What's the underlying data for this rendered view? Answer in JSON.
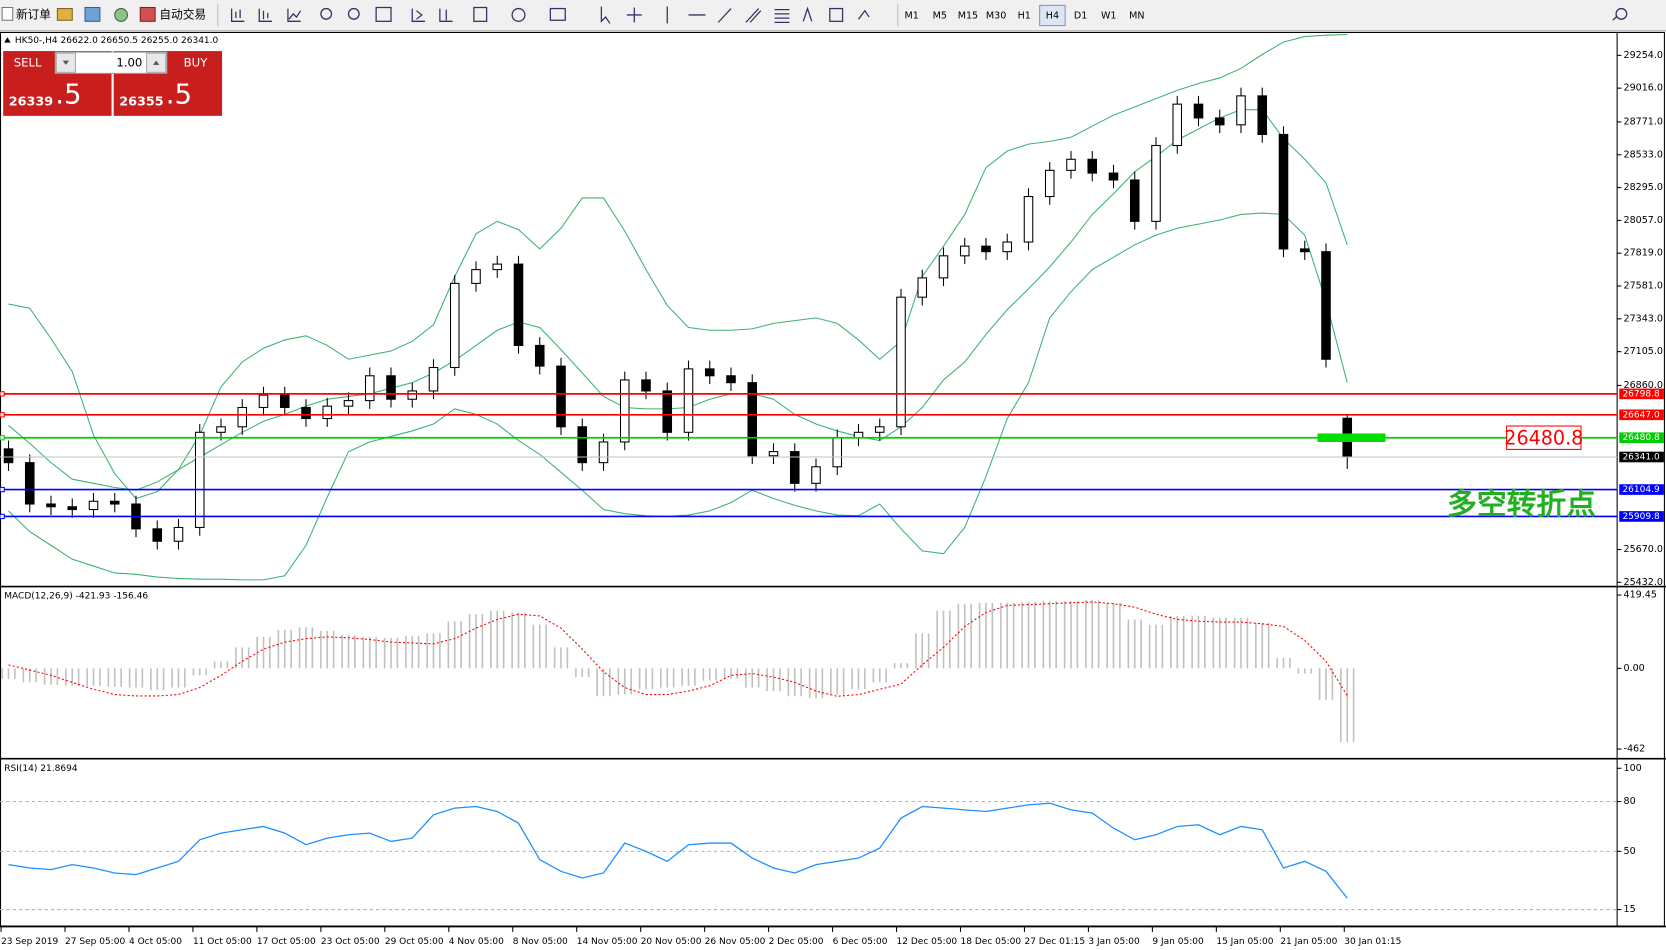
{
  "toolbar": {
    "new_order": "新订单",
    "auto_trading": "自动交易",
    "timeframes": [
      "M1",
      "M5",
      "M15",
      "M30",
      "H1",
      "H4",
      "D1",
      "W1",
      "MN"
    ],
    "active_timeframe": "H4"
  },
  "trade_panel": {
    "sell": "SELL",
    "buy": "BUY",
    "lots": "1.00",
    "bid_big": "26339",
    "bid_small": ".5",
    "ask_big": "26355",
    "ask_small": ".5"
  },
  "chart_data": [
    {
      "type": "candlestick",
      "title": "HK50-,H4  26622.0 26650.5 26255.0 26341.0",
      "open": [
        26400,
        26300,
        26000,
        25980,
        25960,
        26020,
        26000,
        25820,
        25730,
        25830,
        26520,
        26560,
        26700,
        26790,
        26700,
        26620,
        26710,
        26750,
        26930,
        26760,
        26820,
        26990,
        27600,
        27700,
        27740,
        27150,
        27000,
        26560,
        26300,
        26450,
        26900,
        26820,
        26520,
        26980,
        26930,
        26880,
        26350,
        26380,
        26150,
        26270,
        26480,
        26520,
        26560,
        27500,
        27640,
        27800,
        27870,
        27830,
        27900,
        28230,
        28420,
        28500,
        28400,
        28350,
        28050,
        28600,
        28900,
        28800,
        28750,
        28960,
        28680,
        27850,
        27830,
        26622
      ],
      "high": [
        26460,
        26360,
        26060,
        26040,
        26080,
        26080,
        26060,
        25880,
        25890,
        26580,
        26620,
        26760,
        26850,
        26850,
        26760,
        26770,
        26810,
        26990,
        26990,
        26880,
        27050,
        27660,
        27760,
        27800,
        27800,
        27210,
        27060,
        26620,
        26510,
        26960,
        26960,
        26880,
        27040,
        27040,
        26990,
        26940,
        26440,
        26440,
        26330,
        26540,
        26580,
        26620,
        27560,
        27700,
        27860,
        27930,
        27930,
        27960,
        28290,
        28480,
        28560,
        28560,
        28460,
        28410,
        28660,
        28960,
        28960,
        28860,
        29020,
        29020,
        28740,
        27910,
        27890,
        26650.5
      ],
      "low": [
        26240,
        25940,
        25920,
        25900,
        25900,
        25940,
        25760,
        25670,
        25670,
        25770,
        26460,
        26500,
        26640,
        26640,
        26560,
        26560,
        26650,
        26690,
        26700,
        26700,
        26760,
        26930,
        27540,
        27640,
        27090,
        26940,
        26500,
        26240,
        26240,
        26390,
        26760,
        26460,
        26460,
        26870,
        26820,
        26290,
        26290,
        26090,
        26090,
        26210,
        26420,
        26460,
        26500,
        27440,
        27580,
        27740,
        27770,
        27770,
        27840,
        28170,
        28360,
        28340,
        28290,
        27990,
        27990,
        28540,
        28740,
        28690,
        28690,
        28620,
        27790,
        27770,
        26990,
        26255
      ],
      "close": [
        26300,
        26000,
        25980,
        25960,
        26020,
        26000,
        25820,
        25730,
        25830,
        26520,
        26560,
        26700,
        26790,
        26700,
        26620,
        26710,
        26750,
        26930,
        26760,
        26820,
        26990,
        27600,
        27700,
        27740,
        27150,
        27000,
        26560,
        26300,
        26450,
        26900,
        26820,
        26520,
        26980,
        26930,
        26880,
        26350,
        26380,
        26150,
        26270,
        26480,
        26520,
        26560,
        27500,
        27640,
        27800,
        27870,
        27830,
        27900,
        28230,
        28420,
        28500,
        28400,
        28350,
        28050,
        28600,
        28900,
        28800,
        28750,
        28960,
        28680,
        27850,
        27830,
        27050,
        26341
      ],
      "bands": {
        "color": "#3cb371",
        "upper": [
          27450,
          27420,
          27200,
          26960,
          26500,
          26220,
          26040,
          26090,
          26250,
          26500,
          26850,
          27030,
          27130,
          27190,
          27220,
          27150,
          27050,
          27080,
          27110,
          27180,
          27300,
          27650,
          27960,
          28050,
          27990,
          27850,
          28000,
          28220,
          28220,
          27980,
          27700,
          27440,
          27280,
          27260,
          27260,
          27270,
          27310,
          27330,
          27350,
          27310,
          27190,
          27050,
          27180,
          27650,
          27870,
          28100,
          28440,
          28560,
          28610,
          28630,
          28660,
          28740,
          28820,
          28880,
          28940,
          29000,
          29050,
          29090,
          29160,
          29260,
          29350,
          29390,
          29400,
          29405
        ],
        "middle": [
          26570,
          26440,
          26300,
          26180,
          26150,
          26120,
          26100,
          26160,
          26250,
          26340,
          26430,
          26520,
          26600,
          26650,
          26710,
          26760,
          26780,
          26800,
          26840,
          26880,
          26950,
          27040,
          27150,
          27260,
          27320,
          27280,
          27120,
          26950,
          26780,
          26700,
          26690,
          26690,
          26700,
          26760,
          26800,
          26800,
          26760,
          26650,
          26580,
          26530,
          26490,
          26460,
          26560,
          26700,
          26900,
          27030,
          27230,
          27410,
          27560,
          27720,
          27900,
          28100,
          28250,
          28410,
          28520,
          28640,
          28720,
          28800,
          28860,
          28860,
          28650,
          28500,
          28330,
          27880
        ],
        "lower": [
          25950,
          25800,
          25700,
          25600,
          25550,
          25500,
          25490,
          25470,
          25460,
          25455,
          25455,
          25450,
          25450,
          25480,
          25700,
          26050,
          26380,
          26450,
          26490,
          26530,
          26580,
          26690,
          26650,
          26580,
          26460,
          26360,
          26230,
          26100,
          25960,
          25930,
          25915,
          25910,
          25920,
          25950,
          26010,
          26100,
          26040,
          25990,
          25950,
          25920,
          25915,
          26000,
          25820,
          25660,
          25640,
          25830,
          26200,
          26620,
          26880,
          27350,
          27540,
          27700,
          27790,
          27880,
          27950,
          28000,
          28030,
          28060,
          28100,
          28110,
          28100,
          27950,
          27470,
          26880
        ]
      },
      "hlines": [
        {
          "value": 26798.8,
          "label": "26798.8",
          "color": "#ff0000"
        },
        {
          "value": 26647.0,
          "label": "26647.0",
          "color": "#ff0000"
        },
        {
          "value": 26480.8,
          "label": "26480.8",
          "color": "#00cc00"
        },
        {
          "value": 26104.9,
          "label": "26104.9",
          "color": "#0000ff"
        },
        {
          "value": 25909.8,
          "label": "25909.8",
          "color": "#0000ff"
        }
      ],
      "last": {
        "value": 26341.0,
        "label": "26341.0"
      },
      "annotation": "多空转折点",
      "x_labels": [
        "23 Sep 2019",
        "27 Sep 05:00",
        "4 Oct 05:00",
        "11 Oct 05:00",
        "17 Oct 05:00",
        "23 Oct 05:00",
        "29 Oct 05:00",
        "4 Nov 05:00",
        "8 Nov 05:00",
        "14 Nov 05:00",
        "20 Nov 05:00",
        "26 Nov 05:00",
        "2 Dec 05:00",
        "6 Dec 05:00",
        "12 Dec 05:00",
        "18 Dec 05:00",
        "27 Dec 01:15",
        "3 Jan 05:00",
        "9 Jan 05:00",
        "15 Jan 05:00",
        "21 Jan 05:00",
        "30 Jan 01:15"
      ],
      "ylim": [
        25409,
        29416
      ],
      "yticks": [
        {
          "value": 29254,
          "label": "29254.0"
        },
        {
          "value": 29016,
          "label": "29016.0"
        },
        {
          "value": 28771,
          "label": "28771.0"
        },
        {
          "value": 28533,
          "label": "28533.0"
        },
        {
          "value": 28295,
          "label": "28295.0"
        },
        {
          "value": 28057,
          "label": "28057.0"
        },
        {
          "value": 27819,
          "label": "27819.0"
        },
        {
          "value": 27581,
          "label": "27581.0"
        },
        {
          "value": 27343,
          "label": "27343.0"
        },
        {
          "value": 27105,
          "label": "27105.0"
        },
        {
          "value": 26860,
          "label": "26860.0"
        },
        {
          "value": 25670,
          "label": "25670.0"
        },
        {
          "value": 25432,
          "label": "25432.0"
        }
      ]
    },
    {
      "type": "macd",
      "title": "MACD(12,26,9) -421.93 -156.46",
      "values": [
        -60,
        -80,
        -95,
        -100,
        -100,
        -105,
        -110,
        -125,
        -110,
        -40,
        40,
        120,
        180,
        220,
        235,
        215,
        190,
        180,
        175,
        185,
        200,
        270,
        310,
        330,
        320,
        250,
        120,
        -50,
        -160,
        -150,
        -120,
        -110,
        -100,
        -70,
        -60,
        -110,
        -130,
        -160,
        -170,
        -150,
        -120,
        -80,
        30,
        200,
        330,
        370,
        375,
        375,
        380,
        385,
        385,
        390,
        375,
        280,
        250,
        300,
        300,
        290,
        290,
        260,
        60,
        -30,
        -180,
        -421.93
      ],
      "signal": [
        20,
        -10,
        -40,
        -80,
        -120,
        -150,
        -158,
        -158,
        -150,
        -110,
        -40,
        40,
        110,
        150,
        170,
        180,
        175,
        165,
        150,
        145,
        140,
        170,
        230,
        280,
        310,
        300,
        230,
        110,
        -20,
        -110,
        -150,
        -150,
        -130,
        -100,
        -40,
        -30,
        -50,
        -80,
        -130,
        -160,
        -150,
        -120,
        -90,
        20,
        120,
        240,
        320,
        360,
        365,
        370,
        375,
        380,
        370,
        350,
        310,
        280,
        270,
        265,
        265,
        255,
        240,
        160,
        40,
        -156.46
      ],
      "hist_color": "#c0c0c0",
      "signal_color": "#ff0000",
      "ylim": [
        -511,
        462
      ],
      "yticks": [
        {
          "value": 419.45,
          "label": "419.45"
        },
        {
          "value": 0,
          "label": "0.00"
        },
        -462
      ]
    },
    {
      "type": "line",
      "title": "RSI(14) 21.8694",
      "values": [
        42,
        40,
        39,
        42,
        40,
        37,
        36,
        40,
        44,
        57,
        61,
        63,
        65,
        61,
        54,
        58,
        60,
        61,
        56,
        58,
        72,
        76,
        77,
        74,
        67,
        45,
        38,
        34,
        37,
        55,
        50,
        44,
        54,
        55,
        55,
        46,
        40,
        37,
        42,
        44,
        46,
        52,
        70,
        77,
        76,
        75,
        74,
        76,
        78,
        79,
        75,
        73,
        64,
        57,
        60,
        65,
        66,
        60,
        65,
        63,
        40,
        44,
        38,
        21.8694
      ],
      "color": "#1e90ff",
      "ylim": [
        5.4,
        104.5
      ],
      "yticks": [
        100,
        80,
        50,
        15
      ],
      "dashed_levels": [
        80,
        50,
        15
      ]
    }
  ]
}
